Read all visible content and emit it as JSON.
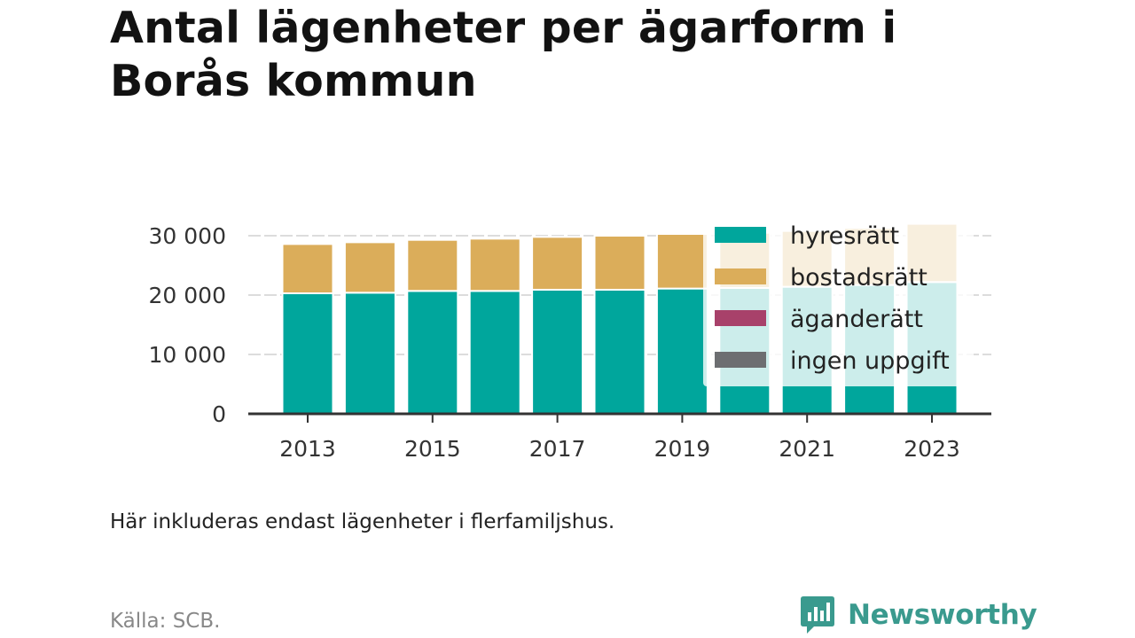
{
  "title": "Antal lägenheter per ägarform i Borås kommun",
  "note": "Här inkluderas endast lägenheter i flerfamiljshus.",
  "source": "Källa: SCB.",
  "brand": "Newsworthy",
  "colors": {
    "hyresratt": "#00a69c",
    "bostadsratt": "#dbad5a",
    "aganderatt": "#a8416a",
    "ingen_uppgift": "#6d6e71"
  },
  "chart_data": {
    "type": "bar",
    "stacked": true,
    "categories": [
      "2013",
      "2014",
      "2015",
      "2016",
      "2017",
      "2018",
      "2019",
      "2020",
      "2021",
      "2022",
      "2023"
    ],
    "x_tick_labels": [
      "2013",
      "2015",
      "2017",
      "2019",
      "2021",
      "2023"
    ],
    "y_ticks": [
      0,
      10000,
      20000,
      30000
    ],
    "y_tick_labels": [
      "0",
      "10 000",
      "20 000",
      "30 000"
    ],
    "ylim": [
      0,
      32000
    ],
    "grid": true,
    "legend_position": "top-right",
    "series": [
      {
        "name": "hyresrätt",
        "color": "#00a69c",
        "values": [
          20300,
          20400,
          20700,
          20700,
          20900,
          20900,
          21100,
          21200,
          21400,
          21700,
          22200
        ]
      },
      {
        "name": "bostadsrätt",
        "color": "#dbad5a",
        "values": [
          8300,
          8500,
          8600,
          8800,
          8900,
          9100,
          9200,
          9300,
          9400,
          9600,
          9800
        ]
      },
      {
        "name": "äganderätt",
        "color": "#a8416a",
        "values": [
          0,
          0,
          0,
          0,
          0,
          0,
          0,
          0,
          0,
          0,
          0
        ]
      },
      {
        "name": "ingen uppgift",
        "color": "#6d6e71",
        "values": [
          0,
          0,
          0,
          0,
          0,
          0,
          0,
          0,
          0,
          0,
          0
        ]
      }
    ]
  }
}
